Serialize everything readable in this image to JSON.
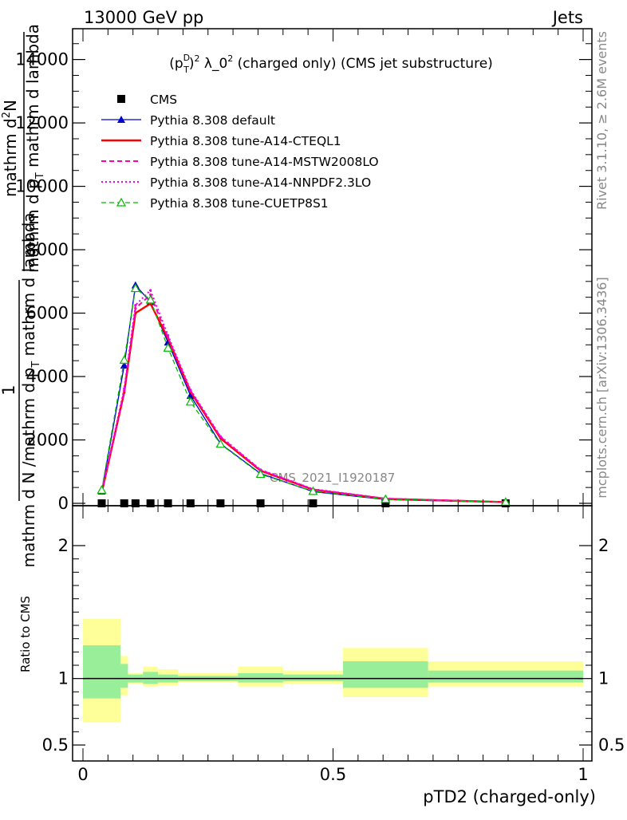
{
  "header": {
    "energy": "13000 GeV pp",
    "category": "Jets"
  },
  "side_labels": {
    "rivet": "Rivet 3.1.10, ≥ 2.6M events",
    "mcplots": "mcplots.cern.ch [arXiv:1306.3436]"
  },
  "watermark": "CMS_2021_I1920187",
  "chart_data": {
    "type": "line",
    "title": "(p_T^D)^2 λ_0^2 (charged only) (CMS jet substructure)",
    "title_parts": {
      "open": "(p",
      "sup1": "D",
      "sub1": "T",
      "close": ")",
      "sup2": "2",
      "mid": " λ_0",
      "sup3": "2",
      "tail": " (charged only) (CMS jet substructure)"
    },
    "xlabel": "pTD2 (charged-only)",
    "ylabel_lines": [
      "1",
      "mathrm d N / mathrm d p_T mathrm d lambda",
      "mathrm d^2N",
      "mathrm d p_T mathrm d lambda"
    ],
    "ylabel_parts": {
      "one": "1",
      "denom": "mathrm d N /mathrm d p",
      "denom_tail": "mathrm d lambda",
      "num": "mathrm d",
      "num_sup": "2",
      "num_tail": "N",
      "den2": "mathrm d p",
      "den2_tail": "mathrm d lambda",
      "sub_t": "T"
    },
    "xlim": [
      0,
      1
    ],
    "ylim": [
      0,
      15500
    ],
    "xticks": [
      0,
      0.5,
      1
    ],
    "xtick_labels": [
      "0",
      "0.5",
      "1"
    ],
    "yticks": [
      0,
      2000,
      4000,
      6000,
      8000,
      10000,
      12000,
      14000
    ],
    "ytick_labels": [
      "0",
      "2000",
      "4000",
      "6000",
      "8000",
      "10000",
      "12000",
      "14000"
    ],
    "x": [
      0.0375,
      0.0825,
      0.105,
      0.135,
      0.17,
      0.215,
      0.275,
      0.355,
      0.46,
      0.605,
      0.845
    ],
    "x_edges": [
      0.0,
      0.075,
      0.09,
      0.12,
      0.15,
      0.19,
      0.24,
      0.31,
      0.4,
      0.52,
      0.69,
      1.0
    ],
    "series": [
      {
        "name": "CMS",
        "style": "data",
        "color": "#000000",
        "values": [
          0,
          0,
          0,
          0,
          0,
          0,
          0,
          0,
          0,
          0,
          0
        ]
      },
      {
        "name": "Pythia 8.308 default",
        "style": "solid",
        "marker": "triangle-filled",
        "color": "#0000cc",
        "values": [
          380,
          4350,
          6880,
          6350,
          5080,
          3400,
          1880,
          940,
          370,
          120,
          30
        ]
      },
      {
        "name": "Pythia 8.308 tune-A14-CTEQL1",
        "style": "solid-thick",
        "color": "#ff0000",
        "values": [
          330,
          3500,
          6000,
          6300,
          5200,
          3520,
          2050,
          1030,
          430,
          140,
          40
        ]
      },
      {
        "name": "Pythia 8.308 tune-A14-MSTW2008LO",
        "style": "dashed",
        "color": "#ff00aa",
        "values": [
          340,
          3550,
          6150,
          6580,
          5230,
          3550,
          2090,
          1050,
          440,
          150,
          40
        ]
      },
      {
        "name": "Pythia 8.308 tune-A14-NNPDF2.3LO",
        "style": "dotted",
        "color": "#ee00ee",
        "values": [
          350,
          3620,
          6250,
          6720,
          5300,
          3580,
          2110,
          1060,
          450,
          150,
          40
        ]
      },
      {
        "name": "Pythia 8.308 tune-CUETP8S1",
        "style": "dashed-green",
        "marker": "triangle-open",
        "color": "#00bb00",
        "values": [
          420,
          4520,
          6780,
          6420,
          4900,
          3200,
          1870,
          920,
          380,
          130,
          40
        ]
      }
    ],
    "ratio": {
      "ylabel": "Ratio to CMS",
      "ylim": [
        0.38,
        2.3
      ],
      "yticks": [
        0.5,
        1,
        2
      ],
      "ytick_labels": [
        "0.5",
        "1",
        "2"
      ],
      "band_inner": [
        [
          0.85,
          1.25
        ],
        [
          0.93,
          1.11
        ],
        [
          0.97,
          1.03
        ],
        [
          0.96,
          1.05
        ],
        [
          0.97,
          1.03
        ],
        [
          0.98,
          1.02
        ],
        [
          0.98,
          1.02
        ],
        [
          0.97,
          1.04
        ],
        [
          0.98,
          1.03
        ],
        [
          0.93,
          1.13
        ],
        [
          0.97,
          1.06
        ]
      ],
      "band_outer": [
        [
          0.67,
          1.45
        ],
        [
          0.87,
          1.17
        ],
        [
          0.96,
          1.04
        ],
        [
          0.94,
          1.09
        ],
        [
          0.95,
          1.07
        ],
        [
          0.97,
          1.04
        ],
        [
          0.97,
          1.04
        ],
        [
          0.94,
          1.09
        ],
        [
          0.96,
          1.06
        ],
        [
          0.86,
          1.23
        ],
        [
          0.94,
          1.13
        ]
      ]
    }
  },
  "colors": {
    "band_inner": "#99ee99",
    "band_outer": "#ffff99",
    "axis": "#000000"
  }
}
